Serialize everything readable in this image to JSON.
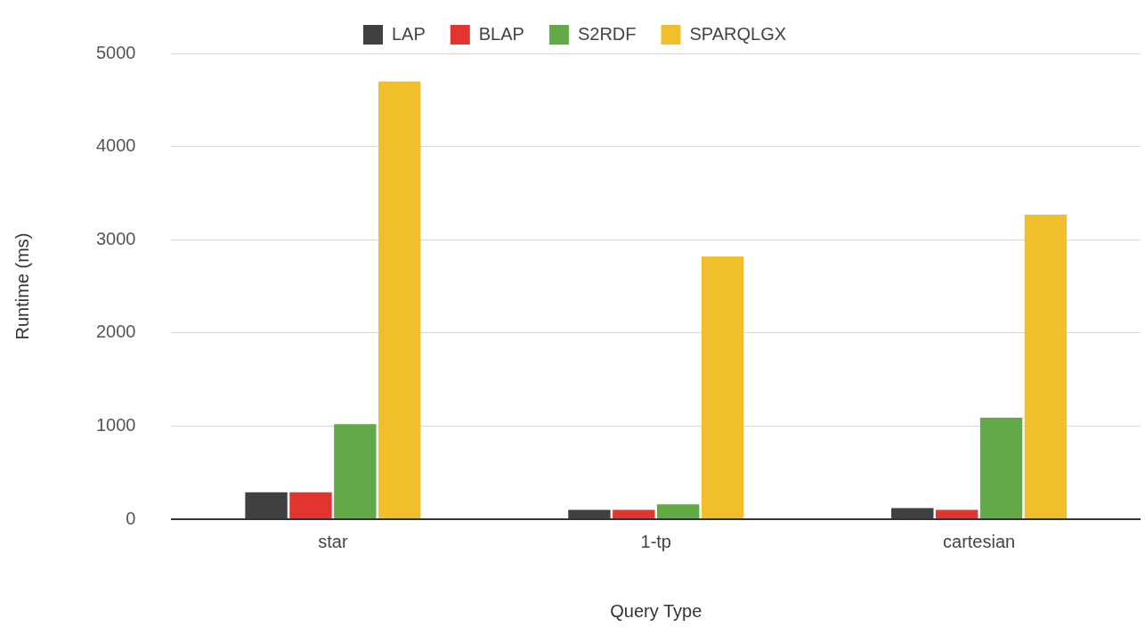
{
  "chart_data": {
    "type": "bar",
    "xlabel": "Query Type",
    "ylabel": "Runtime (ms)",
    "categories": [
      "star",
      "1-tp",
      "cartesian"
    ],
    "series": [
      {
        "name": "LAP",
        "color": "#404040",
        "values": [
          290,
          100,
          120
        ]
      },
      {
        "name": "BLAP",
        "color": "#e2352f",
        "values": [
          290,
          100,
          100
        ]
      },
      {
        "name": "S2RDF",
        "color": "#63a947",
        "values": [
          1020,
          160,
          1090
        ]
      },
      {
        "name": "SPARQLGX",
        "color": "#f1bf2c",
        "values": [
          4700,
          2820,
          3270
        ]
      }
    ],
    "ylim": [
      0,
      5000
    ],
    "yticks": [
      0,
      1000,
      2000,
      3000,
      4000,
      5000
    ],
    "grid": "y",
    "legend": "top"
  }
}
